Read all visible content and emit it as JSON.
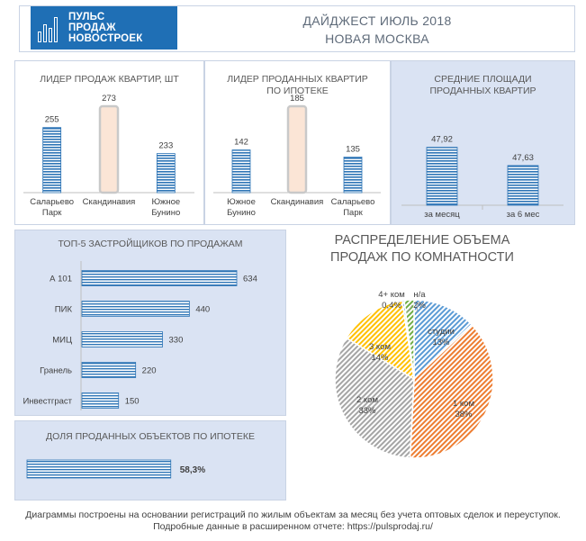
{
  "header": {
    "logo_lines": [
      "ПУЛЬС",
      "ПРОДАЖ",
      "НОВОСТРОЕК"
    ],
    "title_line1": "ДАЙДЖЕСТ ИЮЛЬ 2018",
    "title_line2": "НОВАЯ МОСКВА"
  },
  "colors": {
    "bar_blue": "#2e75b6",
    "highlight_fill": "#fbe5d6",
    "highlight_edge": "#c9c9c9",
    "panel_blue": "#dae3f3",
    "border": "#c9d3e4"
  },
  "chart_data": [
    {
      "id": "sales_leader",
      "type": "bar",
      "title": "ЛИДЕР ПРОДАЖ  КВАРТИР, ШТ",
      "categories": [
        [
          "Саларьево",
          "Парк"
        ],
        [
          "Скандинавия"
        ],
        [
          "Южное",
          "Бунино"
        ]
      ],
      "values": [
        255,
        273,
        233
      ],
      "highlight_index": 1
    },
    {
      "id": "mortgage_leader",
      "type": "bar",
      "title": [
        "ЛИДЕР ПРОДАННЫХ КВАРТИР",
        "ПО ИПОТЕКЕ"
      ],
      "categories": [
        [
          "Южное",
          "Бунино"
        ],
        [
          "Скандинавия"
        ],
        [
          "Саларьево",
          "Парк"
        ]
      ],
      "values": [
        142,
        185,
        135
      ],
      "highlight_index": 1
    },
    {
      "id": "avg_area",
      "type": "bar",
      "title": [
        "СРЕДНИЕ ПЛОЩАДИ",
        "ПРОДАННЫХ КВАРТИР"
      ],
      "categories": [
        [
          "за месяц"
        ],
        [
          "за 6 мес"
        ]
      ],
      "values": [
        47.92,
        47.63
      ],
      "value_labels": [
        "47,92",
        "47,63"
      ]
    },
    {
      "id": "top5_developers",
      "type": "bar",
      "orientation": "horizontal",
      "title": "ТОП-5 ЗАСТРОЙЩИКОВ ПО ПРОДАЖАМ",
      "categories": [
        "А 101",
        "ПИК",
        "МИЦ",
        "Гранель",
        "Инвестграст"
      ],
      "values": [
        634,
        440,
        330,
        220,
        150
      ]
    },
    {
      "id": "mortgage_share",
      "type": "bar",
      "orientation": "horizontal",
      "title": "ДОЛЯ ПРОДАННЫХ ОБЪЕКТОВ ПО ИПОТЕКЕ",
      "values": [
        58.3
      ],
      "value_labels": [
        "58,3%"
      ]
    },
    {
      "id": "rooms_pie",
      "type": "pie",
      "title": [
        "РАСПРЕДЕЛЕНИЕ ОБЪЕМА",
        "ПРОДАЖ ПО КОМНАТНОСТИ"
      ],
      "slices": [
        {
          "name": "студии",
          "value": 13,
          "label": "13%",
          "color": "#5b9bd5"
        },
        {
          "name": "1 ком",
          "value": 38,
          "label": "38%",
          "color": "#ed7d31"
        },
        {
          "name": "2 ком",
          "value": 33,
          "label": "33%",
          "color": "#a5a5a5"
        },
        {
          "name": "3 ком",
          "value": 14,
          "label": "14%",
          "color": "#ffc000"
        },
        {
          "name": "4+ ком",
          "value": 0.4,
          "label": "0,4%",
          "color": "#4472c4"
        },
        {
          "name": "н/а",
          "value": 2,
          "label": "2%",
          "color": "#70ad47"
        }
      ]
    }
  ],
  "footer": {
    "line1": "Диаграммы построены на основании регистраций по жилым объектам за месяц без учета оптовых сделок и переуступок.",
    "line2": "Подробные данные в расширенном отчете: https://pulsprodaj.ru/"
  }
}
